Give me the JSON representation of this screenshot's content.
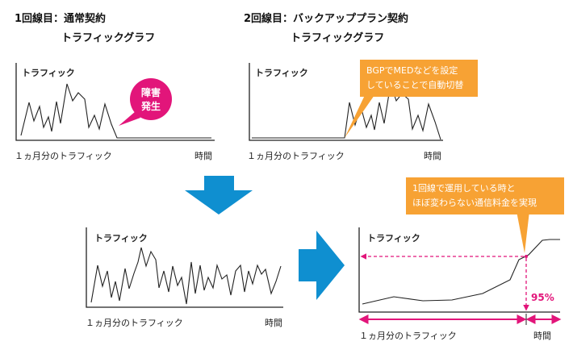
{
  "panel_single": {
    "title_line1": "1回線目：通常契約",
    "title_line2": "トラフィックグラフ",
    "y_label": "トラフィック",
    "x_label": "１ヵ月分のトラフィック",
    "x_end_label": "時間",
    "fault_label_1": "障害",
    "fault_label_2": "発生",
    "fault_color": "#e2157a"
  },
  "panel_backup": {
    "title_line1": "2回線目：バックアッププラン契約",
    "title_line2": "トラフィックグラフ",
    "y_label": "トラフィック",
    "x_label": "１ヵ月分のトラフィック",
    "x_end_label": "時間",
    "callout_line1": "BGPでMEDなどを設定",
    "callout_line2": "していることで自動切替",
    "callout_color": "#f7a234"
  },
  "panel_combined": {
    "y_label": "トラフィック",
    "x_label": "１ヵ月分のトラフィック",
    "x_end_label": "時間"
  },
  "panel_sorted": {
    "y_label": "トラフィック",
    "x_label": "１ヵ月分のトラフィック",
    "x_end_label": "時間",
    "callout_line1": "1回線で運用している時と",
    "callout_line2": "ほぼ変わらない通信料金を実現",
    "percentile_label": "95%",
    "marker_color": "#e2157a"
  },
  "arrow_color": "#0f8fd0"
}
